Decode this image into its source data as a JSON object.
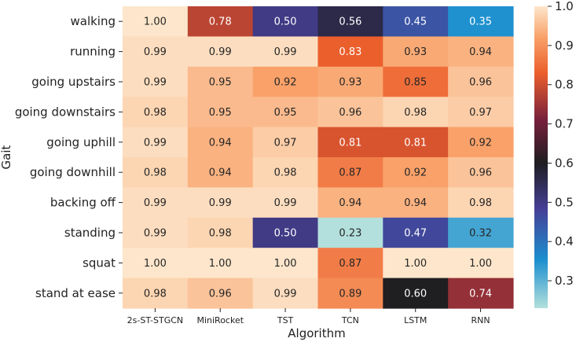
{
  "chart_data": {
    "type": "heatmap",
    "xlabel": "Algorithm",
    "ylabel": "Gait",
    "columns": [
      "2s-ST-STGCN",
      "MiniRocket",
      "TST",
      "TCN",
      "LSTM",
      "RNN"
    ],
    "rows": [
      "walking",
      "running",
      "going upstairs",
      "going downstairs",
      "going uphill",
      "going downhill",
      "backing off",
      "standing",
      "squat",
      "stand at ease"
    ],
    "values": [
      [
        1.0,
        0.78,
        0.5,
        0.56,
        0.45,
        0.35
      ],
      [
        0.99,
        0.99,
        0.99,
        0.83,
        0.93,
        0.94
      ],
      [
        0.99,
        0.95,
        0.92,
        0.93,
        0.85,
        0.96
      ],
      [
        0.98,
        0.95,
        0.95,
        0.96,
        0.98,
        0.97
      ],
      [
        0.99,
        0.94,
        0.97,
        0.81,
        0.81,
        0.92
      ],
      [
        0.98,
        0.94,
        0.98,
        0.87,
        0.92,
        0.96
      ],
      [
        0.99,
        0.99,
        0.99,
        0.94,
        0.94,
        0.98
      ],
      [
        0.99,
        0.98,
        0.5,
        0.23,
        0.47,
        0.32
      ],
      [
        1.0,
        1.0,
        1.0,
        0.87,
        1.0,
        1.0
      ],
      [
        0.98,
        0.96,
        0.99,
        0.89,
        0.6,
        0.74
      ]
    ],
    "value_labels": [
      [
        "1.00",
        "0.78",
        "0.50",
        "0.56",
        "0.45",
        "0.35"
      ],
      [
        "0.99",
        "0.99",
        "0.99",
        "0.83",
        "0.93",
        "0.94"
      ],
      [
        "0.99",
        "0.95",
        "0.92",
        "0.93",
        "0.85",
        "0.96"
      ],
      [
        "0.98",
        "0.95",
        "0.95",
        "0.96",
        "0.98",
        "0.97"
      ],
      [
        "0.99",
        "0.94",
        "0.97",
        "0.81",
        "0.81",
        "0.92"
      ],
      [
        "0.98",
        "0.94",
        "0.98",
        "0.87",
        "0.92",
        "0.96"
      ],
      [
        "0.99",
        "0.99",
        "0.99",
        "0.94",
        "0.94",
        "0.98"
      ],
      [
        "0.99",
        "0.98",
        "0.50",
        "0.23",
        "0.47",
        "0.32"
      ],
      [
        "1.00",
        "1.00",
        "1.00",
        "0.87",
        "1.00",
        "1.00"
      ],
      [
        "0.98",
        "0.96",
        "0.99",
        "0.89",
        "0.60",
        "0.74"
      ]
    ],
    "colorbar": {
      "range": [
        0.23,
        1.0
      ],
      "ticks": [
        0.3,
        0.4,
        0.5,
        0.6,
        0.7,
        0.8,
        0.9,
        1.0
      ],
      "tick_labels": [
        "0.3",
        "0.4",
        "0.5",
        "0.6",
        "0.7",
        "0.8",
        "0.9",
        "1.0"
      ]
    },
    "colormap_stops": [
      [
        0.0,
        "#b3e0dc"
      ],
      [
        0.16,
        "#1b8fcf"
      ],
      [
        0.33,
        "#463f95"
      ],
      [
        0.48,
        "#1f1e21"
      ],
      [
        0.62,
        "#741f3c"
      ],
      [
        0.78,
        "#ec5f2c"
      ],
      [
        0.9,
        "#f9a36b"
      ],
      [
        1.0,
        "#fde6cb"
      ]
    ]
  }
}
